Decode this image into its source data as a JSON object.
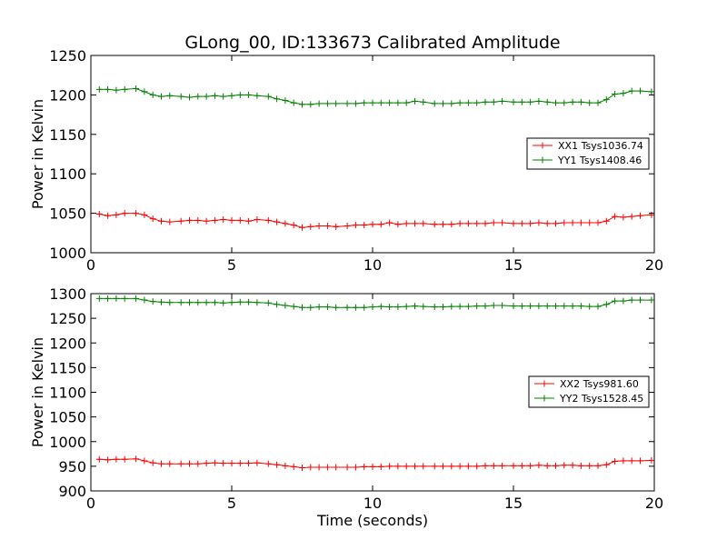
{
  "title": "GLong_00, ID:133673 Calibrated Amplitude",
  "xlabel": "Time (seconds)",
  "chart_data": [
    {
      "type": "line",
      "ylabel": "Power in Kelvin",
      "xlim": [
        0,
        20
      ],
      "ylim": [
        1000,
        1250
      ],
      "xticks": [
        "0",
        "5",
        "10",
        "15",
        "20"
      ],
      "yticks": [
        "1000",
        "1050",
        "1100",
        "1150",
        "1200",
        "1250"
      ],
      "grid": false,
      "legend_position": "right",
      "x": [
        0.3,
        0.6,
        0.9,
        1.2,
        1.6,
        1.9,
        2.2,
        2.5,
        2.8,
        3.2,
        3.5,
        3.8,
        4.1,
        4.4,
        4.7,
        5.0,
        5.3,
        5.6,
        5.9,
        6.3,
        6.6,
        6.9,
        7.2,
        7.5,
        7.8,
        8.1,
        8.4,
        8.7,
        9.1,
        9.4,
        9.7,
        10.0,
        10.3,
        10.6,
        10.9,
        11.2,
        11.5,
        11.8,
        12.2,
        12.5,
        12.8,
        13.1,
        13.4,
        13.7,
        14.0,
        14.3,
        14.6,
        15.0,
        15.3,
        15.6,
        15.9,
        16.2,
        16.5,
        16.8,
        17.1,
        17.4,
        17.7,
        18.0,
        18.3,
        18.6,
        18.9,
        19.2,
        19.5,
        19.9
      ],
      "series": [
        {
          "name": "XX1 Tsys1036.74",
          "color": "#ff0000",
          "values": [
            1049,
            1047,
            1048,
            1050,
            1050,
            1048,
            1043,
            1040,
            1039,
            1040,
            1041,
            1041,
            1040,
            1041,
            1042,
            1041,
            1041,
            1040,
            1042,
            1041,
            1039,
            1037,
            1035,
            1032,
            1033,
            1034,
            1034,
            1033,
            1034,
            1035,
            1035,
            1036,
            1036,
            1038,
            1036,
            1037,
            1037,
            1037,
            1036,
            1036,
            1036,
            1037,
            1037,
            1037,
            1037,
            1038,
            1038,
            1037,
            1037,
            1037,
            1038,
            1037,
            1037,
            1038,
            1038,
            1038,
            1038,
            1038,
            1040,
            1046,
            1045,
            1046,
            1047,
            1048
          ]
        },
        {
          "name": "YY1 Tsys1408.46",
          "color": "#008000",
          "values": [
            1207,
            1207,
            1206,
            1207,
            1208,
            1204,
            1200,
            1198,
            1199,
            1198,
            1197,
            1198,
            1198,
            1199,
            1198,
            1199,
            1200,
            1200,
            1199,
            1198,
            1195,
            1193,
            1190,
            1188,
            1188,
            1189,
            1189,
            1189,
            1189,
            1189,
            1190,
            1190,
            1190,
            1190,
            1190,
            1190,
            1192,
            1191,
            1189,
            1189,
            1189,
            1190,
            1190,
            1190,
            1191,
            1191,
            1192,
            1191,
            1191,
            1191,
            1192,
            1191,
            1190,
            1190,
            1191,
            1191,
            1190,
            1190,
            1194,
            1201,
            1202,
            1205,
            1205,
            1204
          ]
        }
      ]
    },
    {
      "type": "line",
      "ylabel": "Power in Kelvin",
      "xlabel": "Time (seconds)",
      "xlim": [
        0,
        20
      ],
      "ylim": [
        900,
        1300
      ],
      "xticks": [
        "0",
        "5",
        "10",
        "15",
        "20"
      ],
      "yticks": [
        "900",
        "950",
        "1000",
        "1050",
        "1100",
        "1150",
        "1200",
        "1250",
        "1300"
      ],
      "grid": false,
      "legend_position": "right",
      "x": [
        0.3,
        0.6,
        0.9,
        1.2,
        1.6,
        1.9,
        2.2,
        2.5,
        2.8,
        3.2,
        3.5,
        3.8,
        4.1,
        4.4,
        4.7,
        5.0,
        5.3,
        5.6,
        5.9,
        6.3,
        6.6,
        6.9,
        7.2,
        7.5,
        7.8,
        8.1,
        8.4,
        8.7,
        9.1,
        9.4,
        9.7,
        10.0,
        10.3,
        10.6,
        10.9,
        11.2,
        11.5,
        11.8,
        12.2,
        12.5,
        12.8,
        13.1,
        13.4,
        13.7,
        14.0,
        14.3,
        14.6,
        15.0,
        15.3,
        15.6,
        15.9,
        16.2,
        16.5,
        16.8,
        17.1,
        17.4,
        17.7,
        18.0,
        18.3,
        18.6,
        18.9,
        19.2,
        19.5,
        19.9
      ],
      "series": [
        {
          "name": "XX2 Tsys981.60",
          "color": "#ff0000",
          "values": [
            964,
            963,
            964,
            964,
            965,
            961,
            957,
            955,
            955,
            955,
            955,
            955,
            956,
            957,
            956,
            956,
            956,
            956,
            957,
            955,
            953,
            951,
            949,
            947,
            948,
            948,
            948,
            948,
            948,
            948,
            949,
            949,
            949,
            950,
            950,
            950,
            950,
            950,
            950,
            950,
            950,
            950,
            950,
            950,
            951,
            951,
            951,
            951,
            951,
            951,
            952,
            951,
            951,
            952,
            952,
            951,
            951,
            951,
            953,
            960,
            961,
            961,
            961,
            962
          ]
        },
        {
          "name": "YY2 Tsys1528.45",
          "color": "#008000",
          "values": [
            1290,
            1290,
            1290,
            1290,
            1290,
            1287,
            1284,
            1283,
            1282,
            1282,
            1282,
            1282,
            1282,
            1282,
            1281,
            1282,
            1283,
            1283,
            1282,
            1281,
            1278,
            1276,
            1274,
            1272,
            1272,
            1273,
            1273,
            1272,
            1272,
            1272,
            1272,
            1273,
            1274,
            1273,
            1273,
            1274,
            1275,
            1274,
            1273,
            1273,
            1274,
            1274,
            1274,
            1275,
            1275,
            1276,
            1276,
            1275,
            1275,
            1275,
            1275,
            1275,
            1275,
            1275,
            1275,
            1275,
            1274,
            1274,
            1278,
            1285,
            1285,
            1287,
            1287,
            1287
          ]
        }
      ]
    }
  ]
}
